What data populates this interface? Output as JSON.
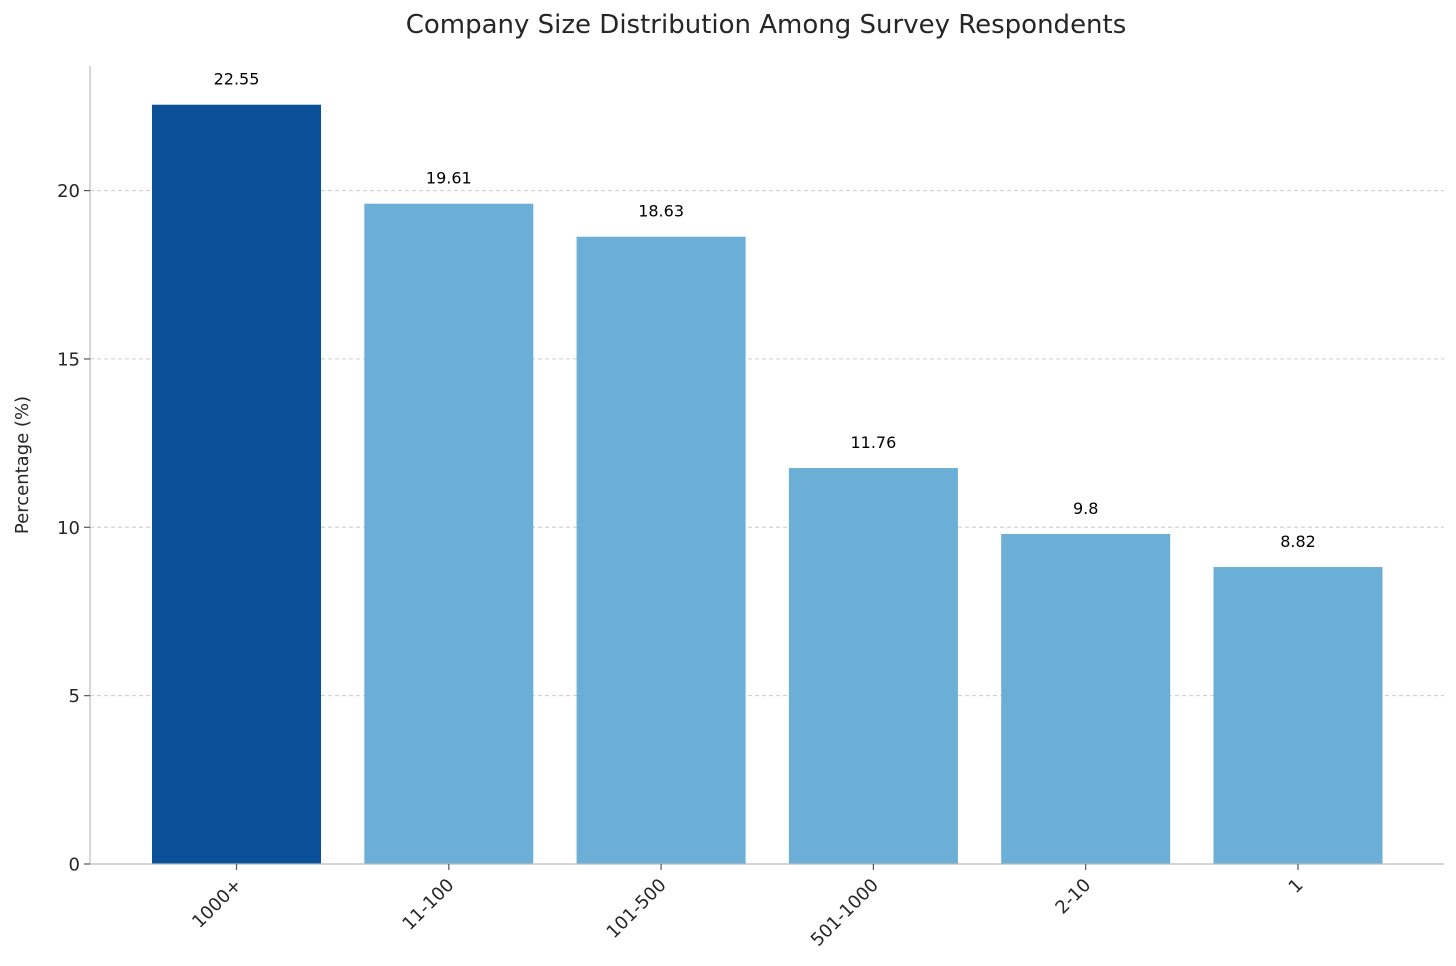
{
  "chart_data": {
    "type": "bar",
    "title": "Company Size Distribution Among Survey Respondents",
    "xlabel": "",
    "ylabel": "Percentage (%)",
    "categories": [
      "1000+",
      "11-100",
      "101-500",
      "501-1000",
      "2-10",
      "1"
    ],
    "values": [
      22.55,
      19.61,
      18.63,
      11.76,
      9.8,
      8.82
    ],
    "value_labels": [
      "22.55",
      "19.61",
      "18.63",
      "11.76",
      "9.8",
      "8.82"
    ],
    "ylim": [
      0,
      23.7
    ],
    "yticks": [
      0,
      5,
      10,
      15,
      20
    ],
    "ytick_labels": [
      "0",
      "5",
      "10",
      "15",
      "20"
    ],
    "grid": "horizontal dashed",
    "highlight_index": 0,
    "colors": {
      "highlight": "#0a519a",
      "default": "#6baed6"
    }
  }
}
